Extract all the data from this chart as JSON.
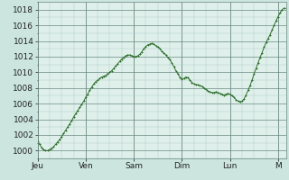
{
  "title": "",
  "bg_color": "#cce5df",
  "plot_bg_color": "#dff0eb",
  "line_color": "#2d6e2d",
  "marker": "+",
  "grid_color": "#adc8c0",
  "grid_major_color": "#6a8880",
  "tick_label_color": "#222222",
  "ylim": [
    999,
    1019
  ],
  "yticks": [
    1000,
    1002,
    1004,
    1006,
    1008,
    1010,
    1012,
    1014,
    1016,
    1018
  ],
  "day_labels": [
    "Jeu",
    "Ven",
    "Sam",
    "Dim",
    "Lun",
    "M"
  ],
  "day_positions": [
    0,
    24,
    48,
    72,
    96,
    120
  ],
  "total_hours": 124,
  "pressure_data": [
    1001.2,
    1000.8,
    1000.4,
    1000.1,
    1000.0,
    1000.0,
    1000.1,
    1000.3,
    1000.5,
    1000.8,
    1001.1,
    1001.4,
    1001.8,
    1002.2,
    1002.6,
    1003.0,
    1003.4,
    1003.8,
    1004.3,
    1004.7,
    1005.1,
    1005.5,
    1005.9,
    1006.3,
    1006.8,
    1007.2,
    1007.7,
    1008.1,
    1008.5,
    1008.8,
    1009.0,
    1009.2,
    1009.4,
    1009.5,
    1009.6,
    1009.8,
    1010.0,
    1010.2,
    1010.5,
    1010.8,
    1011.1,
    1011.4,
    1011.7,
    1011.9,
    1012.1,
    1012.2,
    1012.2,
    1012.1,
    1012.0,
    1012.0,
    1012.1,
    1012.3,
    1012.6,
    1013.0,
    1013.3,
    1013.5,
    1013.6,
    1013.7,
    1013.6,
    1013.4,
    1013.2,
    1013.0,
    1012.7,
    1012.5,
    1012.2,
    1011.9,
    1011.6,
    1011.2,
    1010.7,
    1010.2,
    1009.8,
    1009.4,
    1009.1,
    1009.2,
    1009.4,
    1009.3,
    1009.0,
    1008.7,
    1008.5,
    1008.4,
    1008.4,
    1008.3,
    1008.2,
    1008.0,
    1007.8,
    1007.6,
    1007.5,
    1007.4,
    1007.4,
    1007.5,
    1007.4,
    1007.3,
    1007.2,
    1007.1,
    1007.2,
    1007.3,
    1007.2,
    1007.0,
    1006.8,
    1006.5,
    1006.3,
    1006.2,
    1006.3,
    1006.6,
    1007.1,
    1007.7,
    1008.3,
    1009.0,
    1009.8,
    1010.5,
    1011.2,
    1011.9,
    1012.5,
    1013.2,
    1013.8,
    1014.3,
    1014.8,
    1015.4,
    1016.0,
    1016.6,
    1017.1,
    1017.6,
    1018.0,
    1018.2
  ],
  "font_size_ticks": 6.5,
  "font_size_day": 6.5,
  "line_width": 0.7,
  "marker_size": 2.0,
  "marker_edge_width": 0.7
}
